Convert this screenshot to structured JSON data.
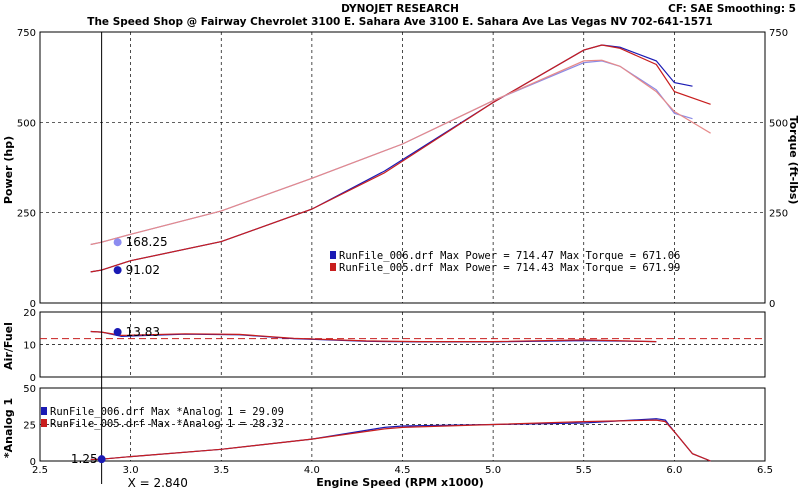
{
  "header": {
    "title": "DYNOJET RESEARCH",
    "subtitle": "The Speed Shop @ Fairway Chevrolet 3100 E. Sahara Ave 3100 E. Sahara Ave Las Vegas NV 702-641-1571",
    "status": "CF: SAE  Smoothing: 5"
  },
  "colors": {
    "run006": "#1a1ab4",
    "run005": "#c81e1e",
    "run006_torque": "#8a8ae6",
    "run005_torque": "#e68a8a",
    "cursor_power": "#1a1ab4",
    "cursor_torque": "#8c8cf0",
    "afr_ref": "#c81e1e"
  },
  "cursor": {
    "x_value": 2.84,
    "x_label": "X = 2.840",
    "torque_label": "168.25",
    "power_label": "91.02",
    "afr_label": "13.83",
    "analog_label": "1.25"
  },
  "legend_main": [
    {
      "text": "RunFile_006.drf Max Power = 714.47    Max Torque = 671.06",
      "color": "#1a1ab4"
    },
    {
      "text": "RunFile_005.drf Max Power = 714.43    Max Torque = 671.99",
      "color": "#c81e1e"
    }
  ],
  "legend_analog": [
    {
      "text": "RunFile_006.drf Max *Analog 1 = 29.09",
      "color": "#1a1ab4"
    },
    {
      "text": "RunFile_005.drf Max *Analog 1 = 28.32",
      "color": "#c81e1e"
    }
  ],
  "chart_data": [
    {
      "type": "line",
      "panel": "power-torque",
      "title": "DYNOJET RESEARCH",
      "xlabel": "Engine Speed (RPM x1000)",
      "ylabel": "Power (hp)",
      "ylabel_right": "Torque (ft-lbs)",
      "xlim": [
        2.5,
        6.5
      ],
      "ylim": [
        0,
        750
      ],
      "yticks": [
        "0",
        "250",
        "500",
        "750"
      ],
      "yticks_right": [
        "0",
        "250",
        "500",
        "750"
      ],
      "grid": true,
      "legend": "center-right",
      "series": [
        {
          "name": "RunFile_006.drf",
          "kind": "power",
          "color": "#1a1ab4",
          "x": [
            2.78,
            2.84,
            3.0,
            3.5,
            4.0,
            4.4,
            5.0,
            5.5,
            5.6,
            5.7,
            5.9,
            6.0,
            6.1
          ],
          "y": [
            86,
            91,
            117,
            170,
            260,
            365,
            555,
            700,
            714,
            708,
            670,
            610,
            600
          ]
        },
        {
          "name": "RunFile_005.drf",
          "kind": "power",
          "color": "#c81e1e",
          "x": [
            2.78,
            2.84,
            3.0,
            3.5,
            4.0,
            4.4,
            5.0,
            5.5,
            5.6,
            5.7,
            5.9,
            6.0,
            6.2
          ],
          "y": [
            86,
            91,
            117,
            170,
            260,
            360,
            555,
            700,
            714,
            705,
            660,
            585,
            550
          ]
        },
        {
          "name": "RunFile_006.drf",
          "kind": "torque",
          "color": "#8a8ae6",
          "x": [
            2.78,
            2.84,
            3.0,
            3.5,
            4.0,
            4.5,
            5.0,
            5.5,
            5.6,
            5.7,
            5.9,
            6.0,
            6.1
          ],
          "y": [
            162,
            168.25,
            190,
            255,
            345,
            440,
            560,
            665,
            670,
            655,
            590,
            525,
            510
          ]
        },
        {
          "name": "RunFile_005.drf",
          "kind": "torque",
          "color": "#e68a8a",
          "x": [
            2.78,
            2.84,
            3.0,
            3.5,
            4.0,
            4.5,
            5.0,
            5.5,
            5.6,
            5.7,
            5.9,
            6.0,
            6.2
          ],
          "y": [
            162,
            168.25,
            190,
            255,
            345,
            440,
            560,
            670,
            672,
            655,
            585,
            530,
            470
          ]
        }
      ]
    },
    {
      "type": "line",
      "panel": "air-fuel",
      "ylabel": "Air/Fuel",
      "xlim": [
        2.5,
        6.5
      ],
      "ylim": [
        0,
        20
      ],
      "yticks": [
        "0",
        "10",
        "20"
      ],
      "reference_line": 11.8,
      "grid": true,
      "series": [
        {
          "name": "RunFile_006.drf",
          "color": "#1a1ab4",
          "x": [
            2.78,
            2.84,
            2.95,
            3.3,
            3.6,
            3.9,
            4.3,
            4.6,
            5.0,
            5.5,
            5.9
          ],
          "y": [
            14,
            13.83,
            12.5,
            13.2,
            13.0,
            11.8,
            11.0,
            10.8,
            10.8,
            11.2,
            10.9
          ]
        },
        {
          "name": "RunFile_005.drf",
          "color": "#c81e1e",
          "x": [
            2.78,
            2.84,
            2.95,
            3.3,
            3.6,
            3.9,
            4.3,
            4.6,
            5.0,
            5.5,
            5.9
          ],
          "y": [
            14,
            13.8,
            12.8,
            13.3,
            13.1,
            11.9,
            11.1,
            10.9,
            10.9,
            11.4,
            10.9
          ]
        }
      ]
    },
    {
      "type": "line",
      "panel": "analog",
      "ylabel": "*Analog 1",
      "xlim": [
        2.5,
        6.5
      ],
      "ylim": [
        0,
        50
      ],
      "yticks": [
        "0",
        "25",
        "50"
      ],
      "xticks": [
        "2.5",
        "3.0",
        "3.5",
        "4.0",
        "4.5",
        "5.0",
        "5.5",
        "6.0",
        "6.5"
      ],
      "xlabel": "Engine Speed (RPM x1000)",
      "grid": true,
      "legend": "top-left",
      "series": [
        {
          "name": "RunFile_006.drf",
          "color": "#1a1ab4",
          "x": [
            2.78,
            2.84,
            3.0,
            3.5,
            4.0,
            4.4,
            4.5,
            5.0,
            5.5,
            5.9,
            5.95,
            6.0,
            6.1,
            6.2
          ],
          "y": [
            1.0,
            1.25,
            3,
            8,
            15,
            23,
            24,
            25,
            26,
            29,
            28,
            20,
            5,
            0
          ]
        },
        {
          "name": "RunFile_005.drf",
          "color": "#c81e1e",
          "x": [
            2.78,
            2.84,
            3.0,
            3.5,
            4.0,
            4.4,
            4.5,
            5.0,
            5.5,
            5.9,
            5.95,
            6.0,
            6.1,
            6.2
          ],
          "y": [
            1.0,
            1.25,
            3,
            8,
            15,
            22,
            23,
            25,
            27,
            28,
            27,
            20,
            5,
            0
          ]
        }
      ]
    }
  ]
}
